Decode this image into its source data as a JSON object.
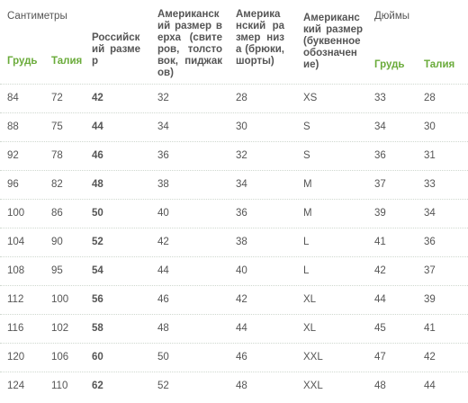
{
  "header": {
    "cm": "Сантиметры",
    "chest": "Грудь",
    "waist": "Талия",
    "ru": "Российский размер",
    "us_top": "Американский размер верха (свитеров, толстовок, пиджаков)",
    "us_bottom": "Американский размер низа (брюки, шорты)",
    "us_letter": "Американский размер (буквенное обозначение)",
    "inches": "Дюймы",
    "inch_chest": "Грудь",
    "inch_waist": "Талия"
  },
  "rows": [
    [
      84,
      72,
      42,
      32,
      28,
      "XS",
      33,
      28
    ],
    [
      88,
      75,
      44,
      34,
      30,
      "S",
      34,
      30
    ],
    [
      92,
      78,
      46,
      36,
      32,
      "S",
      36,
      31
    ],
    [
      96,
      82,
      48,
      38,
      34,
      "M",
      37,
      33
    ],
    [
      100,
      86,
      50,
      40,
      36,
      "M",
      39,
      34
    ],
    [
      104,
      90,
      52,
      42,
      38,
      "L",
      41,
      36
    ],
    [
      108,
      95,
      54,
      44,
      40,
      "L",
      42,
      37
    ],
    [
      112,
      100,
      56,
      46,
      42,
      "XL",
      44,
      39
    ],
    [
      116,
      102,
      58,
      48,
      44,
      "XL",
      45,
      41
    ],
    [
      120,
      106,
      60,
      50,
      46,
      "XXL",
      47,
      42
    ],
    [
      124,
      110,
      62,
      52,
      48,
      "XXL",
      48,
      44
    ]
  ]
}
